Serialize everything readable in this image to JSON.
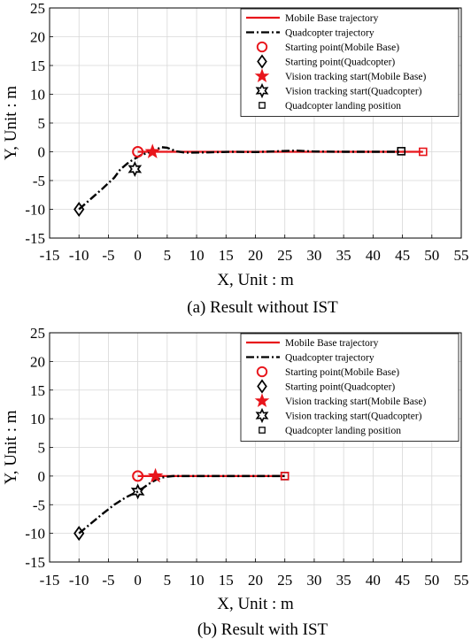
{
  "chart_data": [
    {
      "type": "line",
      "caption": "(a) Result without IST",
      "xlabel": "X, Unit : m",
      "ylabel": "Y, Unit : m",
      "xlim": [
        -15,
        55
      ],
      "ylim": [
        -15,
        25
      ],
      "xticks": [
        "-15",
        "-10",
        "-5",
        "0",
        "5",
        "10",
        "15",
        "20",
        "25",
        "30",
        "35",
        "40",
        "45",
        "50",
        "55"
      ],
      "yticks": [
        "25",
        "20",
        "15",
        "10",
        "5",
        "0",
        "-5",
        "-10",
        "-15"
      ],
      "grid": true,
      "legend_position": "top-right",
      "legend": [
        "Mobile Base trajectory",
        "Quadcopter trajectory",
        "Starting point(Mobile Base)",
        "Starting point(Quadcopter)",
        "Vision tracking start(Mobile Base)",
        "Vision tracking start(Quadcopter)",
        "Quadcopter landing position"
      ],
      "colors": {
        "mobile_base": "#e8151b",
        "quadcopter": "#000000"
      },
      "series": [
        {
          "x": [
            0,
            2.5,
            10,
            20,
            30,
            40,
            48.5
          ],
          "y": [
            0,
            0,
            0,
            0,
            0,
            0,
            0
          ],
          "style": "solid",
          "color": "#e8151b"
        },
        {
          "x": [
            -10,
            -8,
            -6,
            -4,
            -3,
            -1.5,
            0.5,
            2.5,
            4,
            5,
            6.5,
            8,
            12,
            16,
            20,
            24,
            27,
            30,
            35,
            40,
            44.8
          ],
          "y": [
            -10,
            -8.2,
            -6.4,
            -4.5,
            -3.1,
            -1.8,
            -0.6,
            0.1,
            0.8,
            0.7,
            0.1,
            -0.15,
            -0.1,
            0,
            -0.05,
            0.1,
            0.2,
            0.05,
            0,
            0,
            0
          ],
          "style": "dashdot",
          "color": "#000000"
        }
      ],
      "markers": [
        {
          "shape": "circle",
          "x": 0,
          "y": 0,
          "color": "#e8151b"
        },
        {
          "shape": "diamond",
          "x": -10,
          "y": -10,
          "color": "#000000"
        },
        {
          "shape": "star-filled",
          "x": 2.5,
          "y": 0,
          "color": "#e8151b"
        },
        {
          "shape": "hexagram",
          "x": -0.5,
          "y": -3,
          "color": "#000000"
        },
        {
          "shape": "square",
          "x": 44.8,
          "y": 0.1,
          "color": "#000000"
        },
        {
          "shape": "square",
          "x": 48.5,
          "y": 0,
          "color": "#e8151b"
        }
      ]
    },
    {
      "type": "line",
      "caption": "(b) Result with IST",
      "xlabel": "X, Unit : m",
      "ylabel": "Y, Unit : m",
      "xlim": [
        -15,
        55
      ],
      "ylim": [
        -15,
        25
      ],
      "xticks": [
        "-15",
        "-10",
        "-5",
        "0",
        "5",
        "10",
        "15",
        "20",
        "25",
        "30",
        "35",
        "40",
        "45",
        "50",
        "55"
      ],
      "yticks": [
        "25",
        "20",
        "15",
        "10",
        "5",
        "0",
        "-5",
        "-10",
        "-15"
      ],
      "grid": true,
      "legend_position": "top-right",
      "legend": [
        "Mobile Base trajectory",
        "Quadcopter trajectory",
        "Starting point(Mobile Base)",
        "Starting point(Quadcopter)",
        "Vision tracking start(Mobile Base)",
        "Vision tracking start(Quadcopter)",
        "Quadcopter landing position"
      ],
      "colors": {
        "mobile_base": "#e8151b",
        "quadcopter": "#000000"
      },
      "series": [
        {
          "x": [
            0,
            3,
            10,
            15,
            20,
            25
          ],
          "y": [
            0,
            0,
            0,
            0,
            0,
            0
          ],
          "style": "solid",
          "color": "#e8151b"
        },
        {
          "x": [
            -10,
            -8,
            -6,
            -4,
            -2,
            0,
            1,
            2,
            3,
            4,
            5,
            6,
            8,
            10,
            15,
            20,
            25
          ],
          "y": [
            -10,
            -8.3,
            -6.6,
            -5,
            -3.7,
            -2.7,
            -2.0,
            -1.3,
            -0.7,
            -0.3,
            -0.1,
            0,
            0,
            0,
            0,
            0,
            0
          ],
          "style": "dashdot",
          "color": "#000000"
        }
      ],
      "markers": [
        {
          "shape": "circle",
          "x": 0,
          "y": 0,
          "color": "#e8151b"
        },
        {
          "shape": "diamond",
          "x": -10,
          "y": -10,
          "color": "#000000"
        },
        {
          "shape": "star-filled",
          "x": 3,
          "y": 0,
          "color": "#e8151b"
        },
        {
          "shape": "hexagram",
          "x": 0,
          "y": -2.7,
          "color": "#000000"
        },
        {
          "shape": "square",
          "x": 25,
          "y": 0,
          "color": "#000000"
        },
        {
          "shape": "square",
          "x": 25,
          "y": 0,
          "color": "#e8151b"
        }
      ]
    }
  ]
}
